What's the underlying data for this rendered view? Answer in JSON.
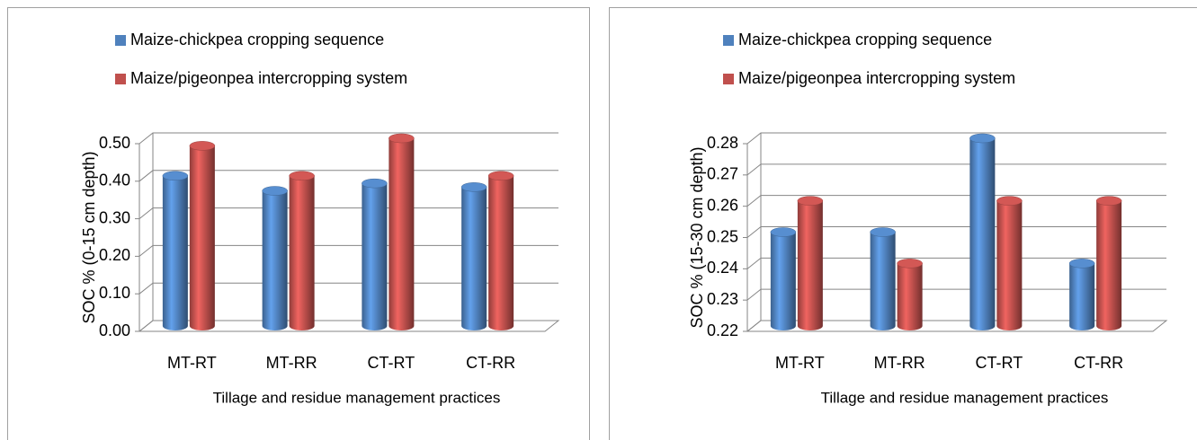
{
  "chart_data": [
    {
      "type": "bar",
      "categories": [
        "MT-RT",
        "MT-RR",
        "CT-RT",
        "CT-RR"
      ],
      "series": [
        {
          "name": "Maize-chickpea cropping sequence",
          "color": "#4f81bd",
          "values": [
            0.4,
            0.36,
            0.38,
            0.37
          ]
        },
        {
          "name": "Maize/pigeonpea intercropping system",
          "color": "#c0504d",
          "values": [
            0.48,
            0.4,
            0.5,
            0.4
          ]
        }
      ],
      "y_label": "SOC  % (0-15 cm depth)",
      "x_label": "Tillage and residue management practices",
      "ylim": [
        0,
        0.5
      ],
      "yticks": [
        {
          "value": 0,
          "label": "0.00"
        },
        {
          "value": 0.1,
          "label": "0.10"
        },
        {
          "value": 0.2,
          "label": "0.20"
        },
        {
          "value": 0.3,
          "label": "0.30"
        },
        {
          "value": 0.4,
          "label": "0.40"
        },
        {
          "value": 0.5,
          "label": "0.50"
        }
      ],
      "grid": true,
      "legend": "top"
    },
    {
      "type": "bar",
      "categories": [
        "MT-RT",
        "MT-RR",
        "CT-RT",
        "CT-RR"
      ],
      "series": [
        {
          "name": "Maize-chickpea cropping sequence",
          "color": "#4f81bd",
          "values": [
            0.25,
            0.25,
            0.28,
            0.24
          ]
        },
        {
          "name": "Maize/pigeonpea intercropping system",
          "color": "#c0504d",
          "values": [
            0.26,
            0.24,
            0.26,
            0.26
          ]
        }
      ],
      "y_label": "SOC  % (15-30 cm depth)",
      "x_label": "Tillage and residue management practices",
      "ylim": [
        0.22,
        0.28
      ],
      "yticks": [
        0.22,
        0.23,
        0.24,
        0.25,
        0.26,
        0.27,
        0.28
      ],
      "grid": true,
      "legend": "top"
    }
  ]
}
